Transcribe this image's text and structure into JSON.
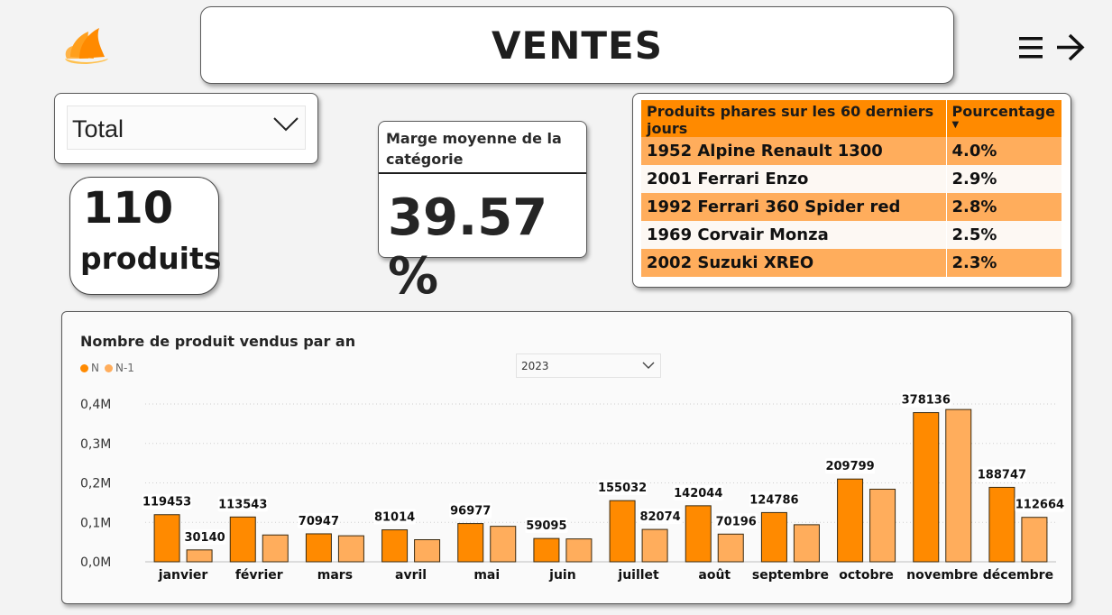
{
  "header": {
    "title": "VENTES",
    "logo_icon": "flame-logo-icon",
    "nav_icon": "menu-arrow-icon"
  },
  "slicer": {
    "value": "Total"
  },
  "count_card": {
    "value": "110",
    "label": "produits"
  },
  "margin_card": {
    "label": "Marge moyenne de la catégorie",
    "value": "39.57 %"
  },
  "top_products": {
    "columns": [
      "Produits phares sur les 60 derniers jours",
      "Pourcentage"
    ],
    "rows": [
      {
        "product": "1952 Alpine Renault 1300",
        "pct": "4.0%"
      },
      {
        "product": "2001 Ferrari Enzo",
        "pct": "2.9%"
      },
      {
        "product": "1992 Ferrari 360 Spider red",
        "pct": "2.8%"
      },
      {
        "product": "1969 Corvair Monza",
        "pct": "2.5%"
      },
      {
        "product": "2002 Suzuki XREO",
        "pct": "2.3%"
      }
    ]
  },
  "colors": {
    "accent": "#ff8a00",
    "accent_light": "#ffad5c"
  },
  "chart_data": {
    "type": "bar",
    "title": "Nombre de produit vendus par an",
    "year_filter": "2023",
    "legend_position": "top-left",
    "grid": true,
    "categories": [
      "janvier",
      "février",
      "mars",
      "avril",
      "mai",
      "juin",
      "juillet",
      "août",
      "septembre",
      "octobre",
      "novembre",
      "décembre"
    ],
    "series": [
      {
        "name": "N",
        "color": "#ff8a00",
        "values": [
          119453,
          113543,
          70947,
          81014,
          96977,
          59095,
          155032,
          142044,
          124786,
          209799,
          378136,
          188747
        ],
        "labels": [
          "119453",
          "113543",
          "70947",
          "81014",
          "96977",
          "59095",
          "155032",
          "142044",
          "124786",
          "209799",
          "378136",
          "188747"
        ]
      },
      {
        "name": "N-1",
        "color": "#ffad5c",
        "values": [
          30140,
          68000,
          66000,
          56000,
          90000,
          58000,
          82074,
          70196,
          94000,
          184000,
          386000,
          112664
        ],
        "labels": [
          "30140",
          "",
          "",
          "",
          "",
          "",
          "82074",
          "70196",
          "",
          "",
          "",
          "112664"
        ]
      }
    ],
    "yticks": [
      0,
      100000,
      200000,
      300000,
      400000
    ],
    "ytick_labels": [
      "0,0M",
      "0,1M",
      "0,2M",
      "0,3M",
      "0,4M"
    ],
    "ylim": [
      0,
      400000
    ]
  }
}
